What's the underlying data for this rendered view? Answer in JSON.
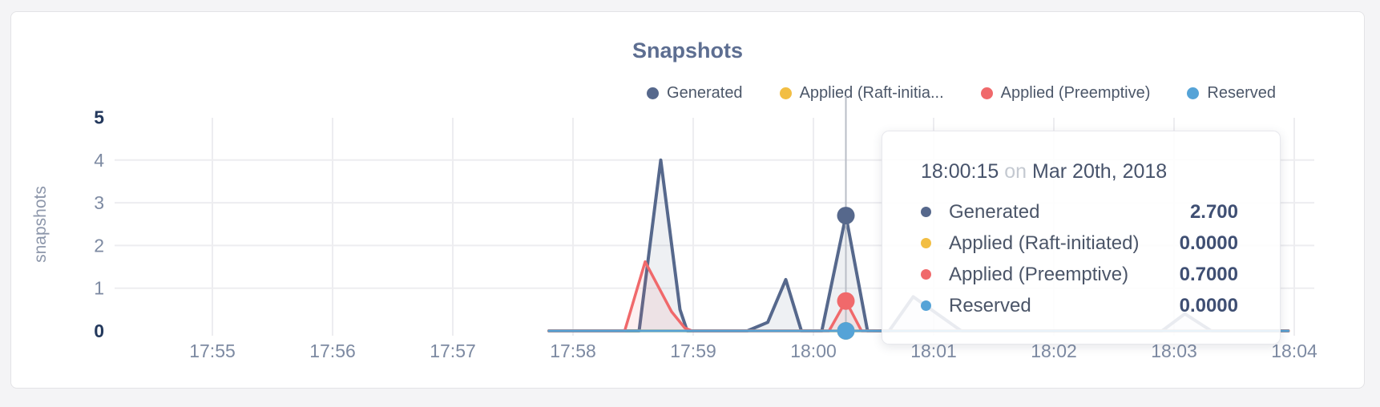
{
  "chart_data": {
    "type": "area",
    "title": "Snapshots",
    "ylabel": "snapshots",
    "x_ticks": [
      "17:55",
      "17:56",
      "17:57",
      "17:58",
      "17:59",
      "18:00",
      "18:01",
      "18:02",
      "18:03",
      "18:04"
    ],
    "y_ticks": [
      0,
      1,
      2,
      3,
      4,
      5
    ],
    "ylim": [
      0,
      5
    ],
    "grid": true,
    "legend_position": "top-right",
    "x_unit": "minutes after 17:55",
    "series": [
      {
        "name": "Generated",
        "color": "#56688C",
        "points": [
          [
            2.8,
            0
          ],
          [
            3.55,
            0
          ],
          [
            3.73,
            4.0
          ],
          [
            3.89,
            0.5
          ],
          [
            3.95,
            0
          ],
          [
            4.45,
            0
          ],
          [
            4.62,
            0.2
          ],
          [
            4.77,
            1.2
          ],
          [
            4.9,
            0
          ],
          [
            5.07,
            0
          ],
          [
            5.27,
            2.7
          ],
          [
            5.45,
            0
          ],
          [
            5.63,
            0
          ],
          [
            5.83,
            0.8
          ],
          [
            6.23,
            0
          ],
          [
            7.9,
            0
          ],
          [
            8.09,
            0.4
          ],
          [
            8.31,
            0
          ],
          [
            8.95,
            0
          ]
        ]
      },
      {
        "name": "Applied (Raft-initiated)",
        "color": "#F2BE43",
        "points": [
          [
            2.8,
            0
          ],
          [
            8.95,
            0
          ]
        ]
      },
      {
        "name": "Applied (Preemptive)",
        "color": "#F0696B",
        "points": [
          [
            2.8,
            0
          ],
          [
            3.43,
            0
          ],
          [
            3.6,
            1.62
          ],
          [
            3.82,
            0.45
          ],
          [
            3.93,
            0.07
          ],
          [
            3.99,
            0
          ],
          [
            5.13,
            0
          ],
          [
            5.27,
            0.7
          ],
          [
            5.4,
            0
          ],
          [
            8.95,
            0
          ]
        ]
      },
      {
        "name": "Reserved",
        "color": "#55A3D7",
        "points": [
          [
            2.8,
            0
          ],
          [
            8.95,
            0
          ]
        ]
      }
    ],
    "hover": {
      "m": 5.27,
      "markers": [
        {
          "name": "Applied (Raft-initiated)",
          "color": "#F2BE43",
          "v": 0
        },
        {
          "name": "Generated",
          "color": "#56688C",
          "v": 2.7
        },
        {
          "name": "Applied (Preemptive)",
          "color": "#F0696B",
          "v": 0.7
        },
        {
          "name": "Reserved",
          "color": "#55A3D7",
          "v": 0
        }
      ]
    }
  },
  "legend": {
    "items": [
      {
        "label": "Generated",
        "color": "#56688C"
      },
      {
        "label": "Applied (Raft-initia...",
        "color": "#F2BE43"
      },
      {
        "label": "Applied (Preemptive)",
        "color": "#F0696B"
      },
      {
        "label": "Reserved",
        "color": "#55A3D7"
      }
    ]
  },
  "tooltip": {
    "time": "18:00:15",
    "conjunction": "on",
    "date": "Mar 20th, 2018",
    "rows": [
      {
        "label": "Generated",
        "color": "#56688C",
        "value": "2.700"
      },
      {
        "label": "Applied (Raft-initiated)",
        "color": "#F2BE43",
        "value": "0.0000"
      },
      {
        "label": "Applied (Preemptive)",
        "color": "#F0696B",
        "value": "0.7000"
      },
      {
        "label": "Reserved",
        "color": "#55A3D7",
        "value": "0.0000"
      }
    ]
  },
  "colors": {
    "grid": "#ededf0",
    "hover_line": "#b9bec7",
    "axis_label": "#7d8aa2",
    "axis_label_bold": "#24395d",
    "y_axis_title": "#8c96aa"
  }
}
